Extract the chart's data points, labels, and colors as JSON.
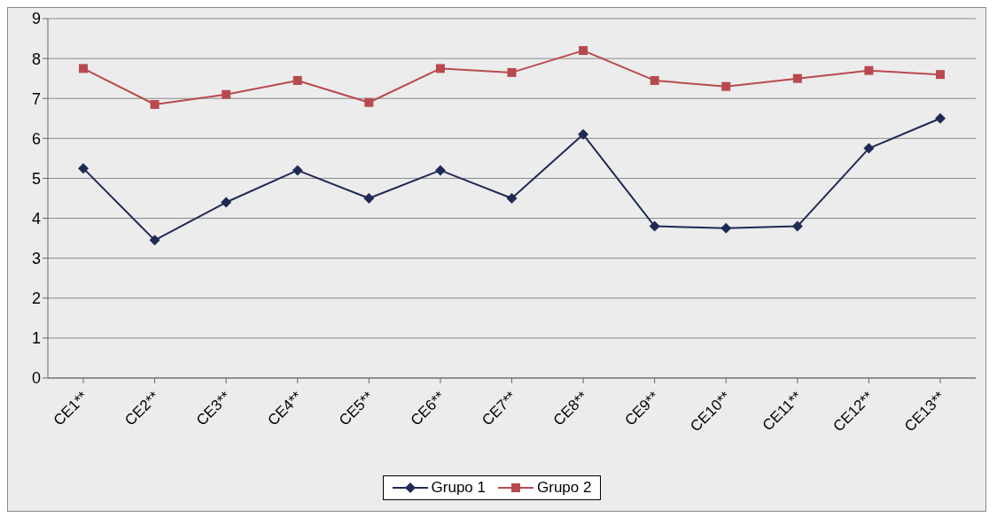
{
  "chart_data": {
    "type": "line",
    "categories": [
      "CE1**",
      "CE2**",
      "CE3**",
      "CE4**",
      "CE5**",
      "CE6**",
      "CE7**",
      "CE8**",
      "CE9**",
      "CE10**",
      "CE11**",
      "CE12**",
      "CE13**"
    ],
    "series": [
      {
        "name": "Grupo 1",
        "color": "#1f2a55",
        "marker": "diamond",
        "values": [
          5.25,
          3.45,
          4.4,
          5.2,
          4.5,
          5.2,
          4.5,
          6.1,
          3.8,
          3.75,
          3.8,
          5.75,
          6.5
        ]
      },
      {
        "name": "Grupo 2",
        "color": "#b84a4f",
        "marker": "square",
        "values": [
          7.75,
          6.85,
          7.1,
          7.45,
          6.9,
          7.75,
          7.65,
          8.2,
          7.45,
          7.3,
          7.5,
          7.7,
          7.6
        ]
      }
    ],
    "ylim": [
      0,
      9
    ],
    "yticks": [
      0,
      1,
      2,
      3,
      4,
      5,
      6,
      7,
      8,
      9
    ],
    "grid": "y",
    "legend": "bottom",
    "line_style": "solid"
  }
}
